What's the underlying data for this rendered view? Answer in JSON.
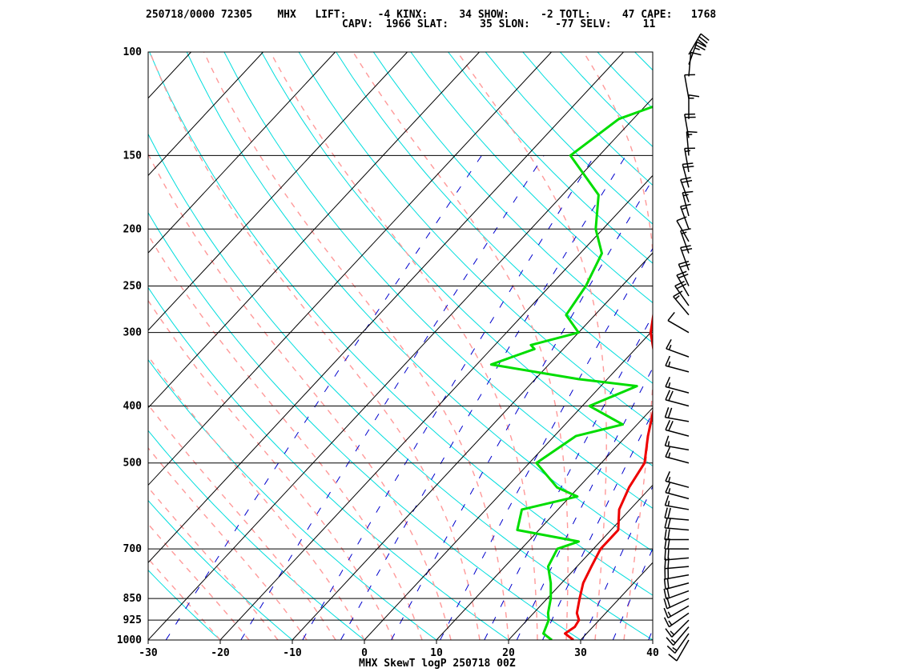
{
  "header": {
    "line1": "250718/0000 72305    MHX   LIFT:     -4 KINX:     34 SHOW:     -2 TOTL:     47 CAPE:   1768",
    "line2": "CAPV:  1966 SLAT:     35 SLON:    -77 SELV:     11"
  },
  "chart_data": {
    "type": "line",
    "title": "MHX SkewT logP 250718 00Z",
    "xlabel": "",
    "ylabel": "",
    "xlim": [
      -30,
      40
    ],
    "ylim": [
      1000,
      100
    ],
    "y_scale": "log",
    "x_ticks": [
      -30,
      -20,
      -10,
      0,
      10,
      20,
      30,
      40
    ],
    "pressure_levels": [
      100,
      150,
      200,
      250,
      300,
      400,
      500,
      700,
      850,
      925,
      1000
    ],
    "series": [
      {
        "key": "temperature",
        "color": "#ee0000",
        "points": [
          [
            1000,
            29
          ],
          [
            975,
            27
          ],
          [
            950,
            27.5
          ],
          [
            925,
            27.2
          ],
          [
            900,
            26
          ],
          [
            850,
            24.5
          ],
          [
            800,
            23
          ],
          [
            750,
            22
          ],
          [
            700,
            21
          ],
          [
            650,
            21
          ],
          [
            600,
            18.5
          ],
          [
            550,
            17
          ],
          [
            500,
            16
          ],
          [
            450,
            13
          ],
          [
            400,
            10
          ],
          [
            350,
            6
          ],
          [
            300,
            0
          ],
          [
            250,
            -5
          ],
          [
            200,
            -13
          ],
          [
            175,
            -17
          ],
          [
            150,
            -22
          ],
          [
            130,
            -22.5
          ],
          [
            115,
            -20
          ],
          [
            105,
            -17
          ],
          [
            100,
            -16
          ]
        ]
      },
      {
        "key": "dewpoint",
        "color": "#00dd00",
        "points": [
          [
            1000,
            26
          ],
          [
            975,
            24
          ],
          [
            925,
            23
          ],
          [
            900,
            22
          ],
          [
            850,
            20.5
          ],
          [
            800,
            18.5
          ],
          [
            750,
            16
          ],
          [
            700,
            15
          ],
          [
            680,
            17
          ],
          [
            650,
            7
          ],
          [
            600,
            5
          ],
          [
            570,
            11
          ],
          [
            550,
            7
          ],
          [
            500,
            1
          ],
          [
            450,
            3
          ],
          [
            430,
            8
          ],
          [
            400,
            1
          ],
          [
            370,
            5
          ],
          [
            360,
            -4
          ],
          [
            340,
            -18
          ],
          [
            320,
            -14
          ],
          [
            315,
            -15
          ],
          [
            300,
            -10
          ],
          [
            280,
            -14
          ],
          [
            250,
            -15
          ],
          [
            220,
            -17
          ],
          [
            200,
            -21
          ],
          [
            175,
            -25
          ],
          [
            150,
            -34
          ],
          [
            130,
            -32
          ],
          [
            115,
            -24
          ],
          [
            105,
            -17
          ],
          [
            100,
            -15
          ]
        ]
      }
    ],
    "wind_barbs": [
      {
        "p": 1000,
        "dir": 210,
        "kt": 10
      },
      {
        "p": 975,
        "dir": 215,
        "kt": 15
      },
      {
        "p": 950,
        "dir": 220,
        "kt": 15
      },
      {
        "p": 925,
        "dir": 225,
        "kt": 15
      },
      {
        "p": 900,
        "dir": 235,
        "kt": 15
      },
      {
        "p": 875,
        "dir": 240,
        "kt": 15
      },
      {
        "p": 850,
        "dir": 245,
        "kt": 20
      },
      {
        "p": 825,
        "dir": 250,
        "kt": 20
      },
      {
        "p": 800,
        "dir": 255,
        "kt": 20
      },
      {
        "p": 775,
        "dir": 260,
        "kt": 20
      },
      {
        "p": 750,
        "dir": 265,
        "kt": 20
      },
      {
        "p": 725,
        "dir": 265,
        "kt": 20
      },
      {
        "p": 700,
        "dir": 270,
        "kt": 20
      },
      {
        "p": 675,
        "dir": 270,
        "kt": 20
      },
      {
        "p": 650,
        "dir": 275,
        "kt": 20
      },
      {
        "p": 625,
        "dir": 275,
        "kt": 20
      },
      {
        "p": 600,
        "dir": 280,
        "kt": 15
      },
      {
        "p": 575,
        "dir": 285,
        "kt": 15
      },
      {
        "p": 550,
        "dir": 285,
        "kt": 15
      },
      {
        "p": 500,
        "dir": 285,
        "kt": 15
      },
      {
        "p": 475,
        "dir": 280,
        "kt": 15
      },
      {
        "p": 450,
        "dir": 285,
        "kt": 20
      },
      {
        "p": 425,
        "dir": 280,
        "kt": 20
      },
      {
        "p": 400,
        "dir": 285,
        "kt": 20
      },
      {
        "p": 380,
        "dir": 285,
        "kt": 15
      },
      {
        "p": 350,
        "dir": 285,
        "kt": 15
      },
      {
        "p": 330,
        "dir": 290,
        "kt": 15
      },
      {
        "p": 300,
        "dir": 300,
        "kt": 10
      },
      {
        "p": 280,
        "dir": 320,
        "kt": 15
      },
      {
        "p": 270,
        "dir": 325,
        "kt": 20
      },
      {
        "p": 260,
        "dir": 330,
        "kt": 20
      },
      {
        "p": 250,
        "dir": 335,
        "kt": 20
      },
      {
        "p": 235,
        "dir": 340,
        "kt": 20
      },
      {
        "p": 220,
        "dir": 340,
        "kt": 15
      },
      {
        "p": 210,
        "dir": 330,
        "kt": 10
      },
      {
        "p": 200,
        "dir": 340,
        "kt": 15
      },
      {
        "p": 190,
        "dir": 345,
        "kt": 15
      },
      {
        "p": 180,
        "dir": 340,
        "kt": 20
      },
      {
        "p": 170,
        "dir": 345,
        "kt": 20
      },
      {
        "p": 160,
        "dir": 350,
        "kt": 15
      },
      {
        "p": 150,
        "dir": 355,
        "kt": 15
      },
      {
        "p": 140,
        "dir": 350,
        "kt": 20
      },
      {
        "p": 130,
        "dir": 0,
        "kt": 15
      },
      {
        "p": 120,
        "dir": 350,
        "kt": 10
      },
      {
        "p": 110,
        "dir": 5,
        "kt": 10
      },
      {
        "p": 105,
        "dir": 20,
        "kt": 25
      },
      {
        "p": 101,
        "dir": 30,
        "kt": 30
      }
    ],
    "colors": {
      "isobar": "#000000",
      "isotherm": "#000000",
      "dry_adiabat": "#00dddd",
      "moist_adiabat": "#ff9999",
      "mixing_ratio": "#0000cc",
      "frame": "#000000"
    }
  }
}
